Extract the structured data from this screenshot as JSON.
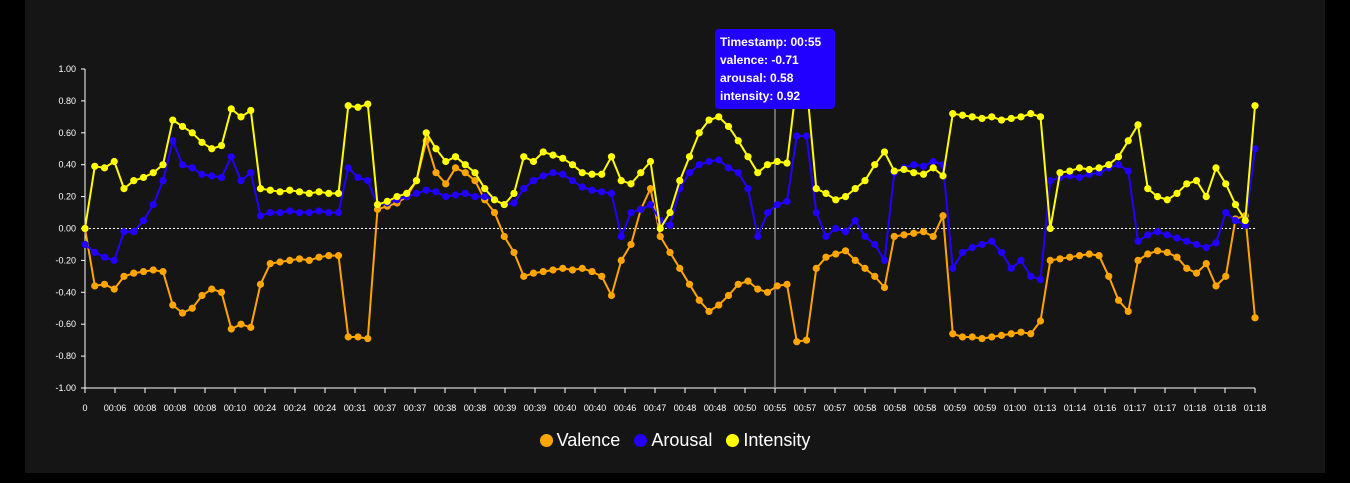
{
  "chart_data": {
    "type": "line",
    "ylim": [
      -1,
      1
    ],
    "y_ticks": [
      "1.00",
      "0.80",
      "0.60",
      "0.40",
      "0.20",
      "0.00",
      "-0.20",
      "-0.40",
      "-0.60",
      "-0.80",
      "-1.00"
    ],
    "x_ticks": [
      "0",
      "00:06",
      "00:08",
      "00:08",
      "00:08",
      "00:10",
      "00:24",
      "00:24",
      "00:24",
      "00:31",
      "00:37",
      "00:37",
      "00:38",
      "00:38",
      "00:39",
      "00:39",
      "00:40",
      "00:40",
      "00:46",
      "00:47",
      "00:48",
      "00:48",
      "00:50",
      "00:55",
      "00:57",
      "00:57",
      "00:58",
      "00:58",
      "00:58",
      "00:59",
      "00:59",
      "01:00",
      "01:13",
      "01:14",
      "01:16",
      "01:17",
      "01:17",
      "01:18",
      "01:18",
      "01:18"
    ],
    "series": [
      {
        "name": "Valence",
        "color": "#ffa500",
        "values": [
          0.0,
          -0.36,
          -0.35,
          -0.38,
          -0.3,
          -0.28,
          -0.27,
          -0.26,
          -0.27,
          -0.48,
          -0.53,
          -0.5,
          -0.42,
          -0.38,
          -0.4,
          -0.63,
          -0.6,
          -0.62,
          -0.35,
          -0.22,
          -0.21,
          -0.2,
          -0.19,
          -0.2,
          -0.18,
          -0.17,
          -0.17,
          -0.68,
          -0.68,
          -0.69,
          0.12,
          0.14,
          0.16,
          0.2,
          0.3,
          0.55,
          0.35,
          0.28,
          0.38,
          0.35,
          0.3,
          0.18,
          0.1,
          -0.05,
          -0.15,
          -0.3,
          -0.28,
          -0.27,
          -0.26,
          -0.25,
          -0.26,
          -0.25,
          -0.27,
          -0.3,
          -0.42,
          -0.2,
          -0.1,
          0.12,
          0.25,
          -0.05,
          -0.15,
          -0.25,
          -0.35,
          -0.45,
          -0.52,
          -0.48,
          -0.42,
          -0.35,
          -0.33,
          -0.38,
          -0.4,
          -0.36,
          -0.35,
          -0.71,
          -0.7,
          -0.25,
          -0.18,
          -0.16,
          -0.14,
          -0.2,
          -0.25,
          -0.3,
          -0.37,
          -0.05,
          -0.04,
          -0.03,
          -0.02,
          -0.05,
          0.08,
          -0.66,
          -0.68,
          -0.68,
          -0.69,
          -0.68,
          -0.67,
          -0.66,
          -0.65,
          -0.66,
          -0.58,
          -0.2,
          -0.19,
          -0.18,
          -0.17,
          -0.16,
          -0.17,
          -0.3,
          -0.45,
          -0.52,
          -0.2,
          -0.16,
          -0.14,
          -0.15,
          -0.18,
          -0.25,
          -0.28,
          -0.22,
          -0.36,
          -0.3,
          0.06,
          0.08,
          -0.56
        ]
      },
      {
        "name": "Arousal",
        "color": "#2200ff",
        "values": [
          -0.1,
          -0.15,
          -0.18,
          -0.2,
          -0.02,
          -0.02,
          0.05,
          0.15,
          0.3,
          0.55,
          0.4,
          0.38,
          0.34,
          0.33,
          0.32,
          0.45,
          0.3,
          0.35,
          0.08,
          0.1,
          0.1,
          0.11,
          0.1,
          0.1,
          0.11,
          0.1,
          0.1,
          0.38,
          0.32,
          0.3,
          0.15,
          0.16,
          0.18,
          0.2,
          0.22,
          0.24,
          0.23,
          0.2,
          0.21,
          0.22,
          0.2,
          0.2,
          0.18,
          0.15,
          0.16,
          0.25,
          0.3,
          0.33,
          0.35,
          0.34,
          0.3,
          0.26,
          0.24,
          0.23,
          0.22,
          -0.05,
          0.1,
          0.12,
          0.15,
          0.05,
          0.02,
          0.25,
          0.35,
          0.4,
          0.42,
          0.43,
          0.38,
          0.35,
          0.25,
          -0.05,
          0.1,
          0.15,
          0.17,
          0.58,
          0.58,
          0.1,
          -0.05,
          0.0,
          -0.02,
          0.05,
          -0.05,
          -0.1,
          -0.2,
          0.35,
          0.38,
          0.4,
          0.39,
          0.42,
          0.4,
          -0.25,
          -0.15,
          -0.12,
          -0.1,
          -0.08,
          -0.15,
          -0.25,
          -0.2,
          -0.3,
          -0.32,
          0.3,
          0.32,
          0.33,
          0.32,
          0.34,
          0.35,
          0.38,
          0.4,
          0.36,
          -0.08,
          -0.04,
          -0.02,
          -0.04,
          -0.06,
          -0.08,
          -0.1,
          -0.12,
          -0.09,
          0.1,
          0.05,
          0.02,
          0.5
        ]
      },
      {
        "name": "Intensity",
        "color": "#ffff00",
        "values": [
          0.0,
          0.39,
          0.38,
          0.42,
          0.25,
          0.3,
          0.32,
          0.35,
          0.4,
          0.68,
          0.64,
          0.6,
          0.54,
          0.5,
          0.52,
          0.75,
          0.7,
          0.74,
          0.25,
          0.24,
          0.23,
          0.24,
          0.23,
          0.22,
          0.23,
          0.22,
          0.22,
          0.77,
          0.76,
          0.78,
          0.15,
          0.17,
          0.2,
          0.22,
          0.3,
          0.6,
          0.5,
          0.42,
          0.45,
          0.4,
          0.35,
          0.25,
          0.18,
          0.15,
          0.22,
          0.45,
          0.42,
          0.48,
          0.46,
          0.44,
          0.4,
          0.35,
          0.34,
          0.34,
          0.45,
          0.3,
          0.28,
          0.35,
          0.42,
          0.0,
          0.1,
          0.3,
          0.45,
          0.6,
          0.68,
          0.7,
          0.64,
          0.55,
          0.45,
          0.35,
          0.4,
          0.42,
          0.41,
          0.92,
          0.91,
          0.25,
          0.22,
          0.18,
          0.2,
          0.25,
          0.3,
          0.4,
          0.48,
          0.36,
          0.37,
          0.35,
          0.34,
          0.38,
          0.33,
          0.72,
          0.71,
          0.7,
          0.69,
          0.7,
          0.68,
          0.69,
          0.7,
          0.72,
          0.7,
          0.0,
          0.35,
          0.36,
          0.38,
          0.37,
          0.38,
          0.4,
          0.45,
          0.55,
          0.65,
          0.25,
          0.2,
          0.18,
          0.22,
          0.28,
          0.3,
          0.2,
          0.38,
          0.28,
          0.15,
          0.05,
          0.77
        ]
      }
    ],
    "tooltip": {
      "timestamp_label": "Timestamp:",
      "timestamp": "00:55",
      "valence_label": "valence:",
      "valence": "-0.71",
      "arousal_label": "arousal:",
      "arousal": "0.58",
      "intensity_label": "intensity:",
      "intensity": "0.92"
    },
    "highlight_x_tick": "00:55"
  },
  "legend": {
    "valence": "Valence",
    "arousal": "Arousal",
    "intensity": "Intensity"
  }
}
